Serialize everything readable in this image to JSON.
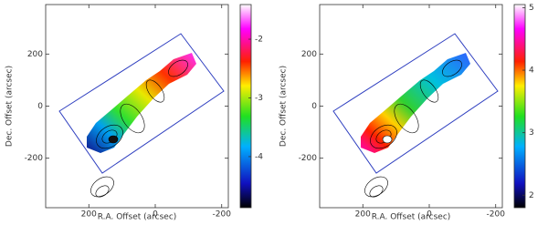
{
  "chart_data": [
    {
      "type": "image",
      "x_label": "R.A. Offset (arcsec)",
      "y_label": "Dec. Offset (arcsec)",
      "xlim": [
        330,
        -220
      ],
      "ylim": [
        -390,
        390
      ],
      "xticks": [
        200,
        0,
        -200
      ],
      "yticks": [
        -200,
        0,
        200
      ],
      "clim": [
        -4.87,
        -1.41
      ],
      "cticks": [
        -4,
        -3,
        -2
      ]
    },
    {
      "type": "image",
      "x_label": "R.A. Offset (arcsec)",
      "y_label": "Dec. Offset (arcsec)",
      "xlim": [
        330,
        -220
      ],
      "ylim": [
        -390,
        390
      ],
      "xticks": [
        200,
        0,
        -200
      ],
      "yticks": [
        -200,
        0,
        200
      ],
      "clim": [
        1.8,
        5.05
      ],
      "cticks": [
        2,
        3,
        4,
        5
      ]
    }
  ]
}
